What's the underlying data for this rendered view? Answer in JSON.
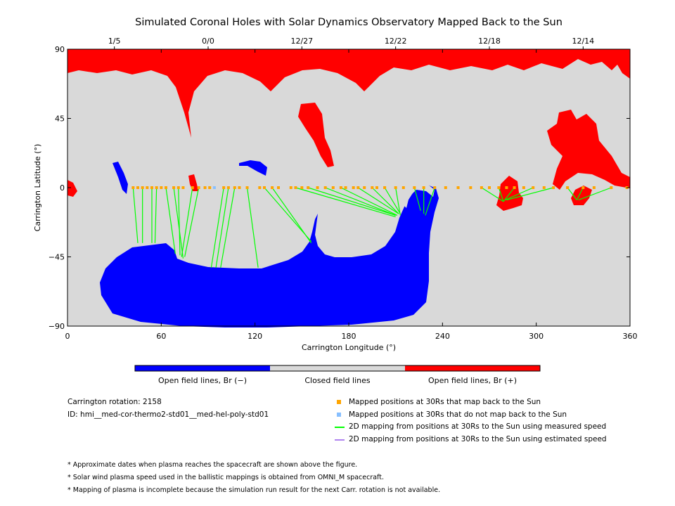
{
  "chart_data": {
    "type": "map",
    "title": "Simulated Coronal Holes with Solar Dynamics Observatory Mapped Back to the Sun",
    "xlabel": "Carrington Longitude (°)",
    "ylabel": "Carrington Latitude (°)",
    "xlim": [
      0,
      360
    ],
    "ylim": [
      -90,
      90
    ],
    "x_ticks": [
      "0",
      "60",
      "120",
      "180",
      "240",
      "300",
      "360"
    ],
    "y_ticks": [
      "90",
      "45",
      "0",
      "−45",
      "−90"
    ],
    "top_axis_dates": [
      {
        "label": "1/5",
        "lon": 30
      },
      {
        "label": "0/0",
        "lon": 90
      },
      {
        "label": "12/27",
        "lon": 150
      },
      {
        "label": "12/22",
        "lon": 210
      },
      {
        "label": "12/18",
        "lon": 270
      },
      {
        "label": "12/14",
        "lon": 330
      }
    ],
    "colors": {
      "negative_open": "#0000ff",
      "closed": "#d9d9d9",
      "positive_open": "#ff0000",
      "mapped_point": "#ffa500",
      "unmapped_point": "#87bfff",
      "measured_line": "#00ff00",
      "estimated_line": "#b084f0"
    },
    "mapped_positions_30Rs": [
      [
        42,
        0
      ],
      [
        45,
        0
      ],
      [
        48,
        0
      ],
      [
        51,
        0
      ],
      [
        54,
        0
      ],
      [
        57,
        0
      ],
      [
        60,
        0
      ],
      [
        63,
        0
      ],
      [
        68,
        0
      ],
      [
        71,
        0
      ],
      [
        74,
        0
      ],
      [
        80,
        0
      ],
      [
        84,
        0
      ],
      [
        88,
        0
      ],
      [
        91,
        0
      ],
      [
        100,
        0
      ],
      [
        103,
        0
      ],
      [
        107,
        0
      ],
      [
        110,
        0
      ],
      [
        115,
        0
      ],
      [
        123,
        0
      ],
      [
        126,
        0
      ],
      [
        131,
        0
      ],
      [
        135,
        0
      ],
      [
        143,
        0
      ],
      [
        146,
        0
      ],
      [
        150,
        0
      ],
      [
        154,
        0
      ],
      [
        160,
        0
      ],
      [
        165,
        0
      ],
      [
        170,
        0
      ],
      [
        175,
        0
      ],
      [
        178,
        0
      ],
      [
        183,
        0
      ],
      [
        186,
        0
      ],
      [
        190,
        0
      ],
      [
        195,
        0
      ],
      [
        198,
        0
      ],
      [
        203,
        0
      ],
      [
        210,
        0
      ],
      [
        215,
        0
      ],
      [
        222,
        0
      ],
      [
        228,
        0
      ],
      [
        235,
        0
      ],
      [
        242,
        0
      ],
      [
        250,
        0
      ],
      [
        258,
        0
      ],
      [
        265,
        0
      ],
      [
        270,
        0
      ],
      [
        276,
        0
      ],
      [
        281,
        0
      ],
      [
        286,
        0
      ],
      [
        292,
        0
      ],
      [
        298,
        0
      ],
      [
        305,
        0
      ],
      [
        311,
        0
      ],
      [
        320,
        0
      ],
      [
        330,
        0
      ],
      [
        337,
        0
      ],
      [
        348,
        0
      ],
      [
        358,
        0
      ]
    ],
    "unmapped_positions_30Rs": [
      [
        94,
        0
      ]
    ],
    "mapping_lines": [
      {
        "from": [
          42,
          0
        ],
        "to": [
          45,
          -36
        ]
      },
      {
        "from": [
          48,
          0
        ],
        "to": [
          48,
          -36
        ]
      },
      {
        "from": [
          54,
          0
        ],
        "to": [
          54,
          -36
        ]
      },
      {
        "from": [
          57,
          0
        ],
        "to": [
          56,
          -36
        ]
      },
      {
        "from": [
          63,
          0
        ],
        "to": [
          69,
          -43
        ]
      },
      {
        "from": [
          68,
          0
        ],
        "to": [
          74,
          -46
        ]
      },
      {
        "from": [
          71,
          0
        ],
        "to": [
          72,
          -44
        ]
      },
      {
        "from": [
          80,
          0
        ],
        "to": [
          73,
          -45
        ]
      },
      {
        "from": [
          84,
          0
        ],
        "to": [
          75,
          -45
        ]
      },
      {
        "from": [
          100,
          0
        ],
        "to": [
          92,
          -52
        ]
      },
      {
        "from": [
          103,
          0
        ],
        "to": [
          95,
          -52
        ]
      },
      {
        "from": [
          107,
          0
        ],
        "to": [
          98,
          -52
        ]
      },
      {
        "from": [
          115,
          0
        ],
        "to": [
          122,
          -52
        ]
      },
      {
        "from": [
          126,
          0
        ],
        "to": [
          156,
          -35
        ]
      },
      {
        "from": [
          131,
          0
        ],
        "to": [
          156,
          -36
        ]
      },
      {
        "from": [
          146,
          0
        ],
        "to": [
          210,
          -19
        ]
      },
      {
        "from": [
          154,
          0
        ],
        "to": [
          210,
          -18
        ]
      },
      {
        "from": [
          165,
          0
        ],
        "to": [
          210,
          -18
        ]
      },
      {
        "from": [
          175,
          0
        ],
        "to": [
          211,
          -18
        ]
      },
      {
        "from": [
          186,
          0
        ],
        "to": [
          212,
          -17
        ]
      },
      {
        "from": [
          195,
          0
        ],
        "to": [
          212,
          -17
        ]
      },
      {
        "from": [
          203,
          0
        ],
        "to": [
          213,
          -17
        ]
      },
      {
        "from": [
          210,
          0
        ],
        "to": [
          213,
          -18
        ]
      },
      {
        "from": [
          222,
          0
        ],
        "to": [
          226,
          -15
        ]
      },
      {
        "from": [
          228,
          0
        ],
        "to": [
          228,
          -17
        ]
      },
      {
        "from": [
          235,
          0
        ],
        "to": [
          229,
          -18
        ]
      },
      {
        "from": [
          265,
          0
        ],
        "to": [
          279,
          -9
        ]
      },
      {
        "from": [
          276,
          0
        ],
        "to": [
          279,
          -9
        ]
      },
      {
        "from": [
          286,
          0
        ],
        "to": [
          279,
          -9
        ]
      },
      {
        "from": [
          298,
          0
        ],
        "to": [
          280,
          -8
        ]
      },
      {
        "from": [
          311,
          0
        ],
        "to": [
          281,
          -8
        ]
      },
      {
        "from": [
          320,
          0
        ],
        "to": [
          326,
          -8
        ]
      },
      {
        "from": [
          330,
          0
        ],
        "to": [
          326,
          -8
        ]
      },
      {
        "from": [
          348,
          0
        ],
        "to": [
          327,
          -8
        ]
      }
    ]
  },
  "colorbar": {
    "labels": [
      "Open field lines, Br (−)",
      "Closed field lines",
      "Open field lines, Br (+)"
    ]
  },
  "info": {
    "rotation": "Carrington rotation: 2158",
    "id": "ID: hmi__med-cor-thermo2-std01__med-hel-poly-std01"
  },
  "legend": {
    "mapped": "Mapped positions at 30Rs that map back to the Sun",
    "unmapped": "Mapped positions at 30Rs that do not map back to the Sun",
    "measured": "2D mapping from positions at 30Rs to the Sun using measured speed",
    "estimated": "2D mapping from positions at 30Rs to the Sun using estimated speed"
  },
  "notes": [
    "* Approximate dates when plasma reaches the spacecraft are shown above the figure.",
    "* Solar wind plasma speed used in the ballistic mappings is obtained from OMNI_M spacecraft.",
    "* Mapping of plasma is incomplete because the simulation run result for the next Carr. rotation is not available."
  ]
}
